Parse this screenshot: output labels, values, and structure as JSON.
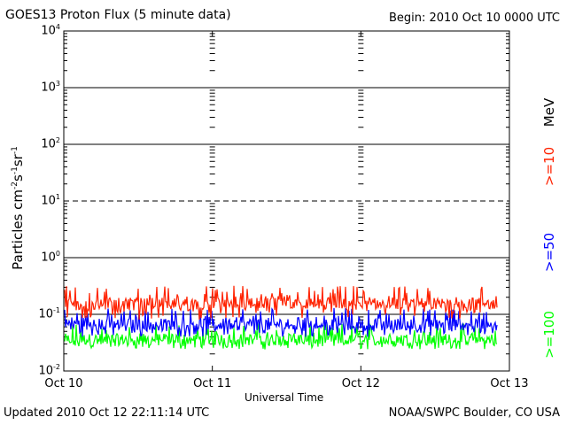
{
  "header": {
    "title": "GOES13 Proton Flux (5 minute data)",
    "begin": "Begin: 2010 Oct 10 0000 UTC"
  },
  "footer": {
    "updated": "Updated 2010 Oct 12 22:11:14 UTC",
    "credit": "NOAA/SWPC Boulder, CO USA"
  },
  "axes": {
    "xlabel": "Universal Time",
    "ylabel_base": "Particles cm",
    "ylabel_sup1": "-2",
    "ylabel_mid1": "s",
    "ylabel_sup2": "-1",
    "ylabel_mid2": "sr",
    "ylabel_sup3": "-1",
    "ytick_base": "10",
    "ytick_exps": [
      "-2",
      "-1",
      "0",
      "1",
      "2",
      "3",
      "4"
    ]
  },
  "chart_data": {
    "type": "line",
    "title": "GOES13 Proton Flux (5 minute data)",
    "xlabel": "Universal Time",
    "ylabel": "Particles cm-2 s-1 sr-1",
    "yscale": "log",
    "ylim": [
      0.01,
      10000
    ],
    "x_ticks": [
      "Oct 10",
      "Oct 11",
      "Oct 12",
      "Oct 13"
    ],
    "xlim_days": [
      0,
      3
    ],
    "data_end_day": 2.92,
    "unit_label": "MeV",
    "series": [
      {
        "name": ">=10",
        "color": "#ff2200",
        "baseline": 0.15,
        "high": 0.32,
        "low": 0.08
      },
      {
        "name": ">=50",
        "color": "#0000ff",
        "baseline": 0.065,
        "high": 0.13,
        "low": 0.04
      },
      {
        "name": ">=100",
        "color": "#00ff00",
        "baseline": 0.035,
        "high": 0.07,
        "low": 0.024
      }
    ]
  }
}
